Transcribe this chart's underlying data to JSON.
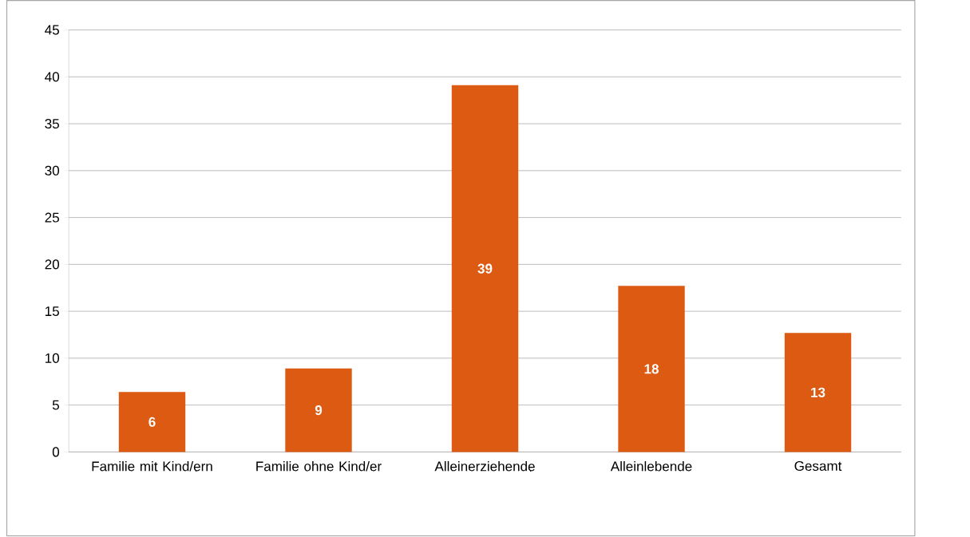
{
  "chart_data": {
    "type": "bar",
    "categories": [
      "Familie mit Kind/ern",
      "Familie ohne Kind/er",
      "Alleinerziehende",
      "Alleinlebende",
      "Gesamt"
    ],
    "values": [
      6.4,
      8.9,
      39.1,
      17.7,
      12.7
    ],
    "value_labels": [
      "6",
      "9",
      "39",
      "18",
      "13"
    ],
    "color": "#dd5a13",
    "ylim": [
      0,
      45
    ],
    "yticks": [
      0,
      5,
      10,
      15,
      20,
      25,
      30,
      35,
      40,
      45
    ],
    "grid": "y"
  }
}
